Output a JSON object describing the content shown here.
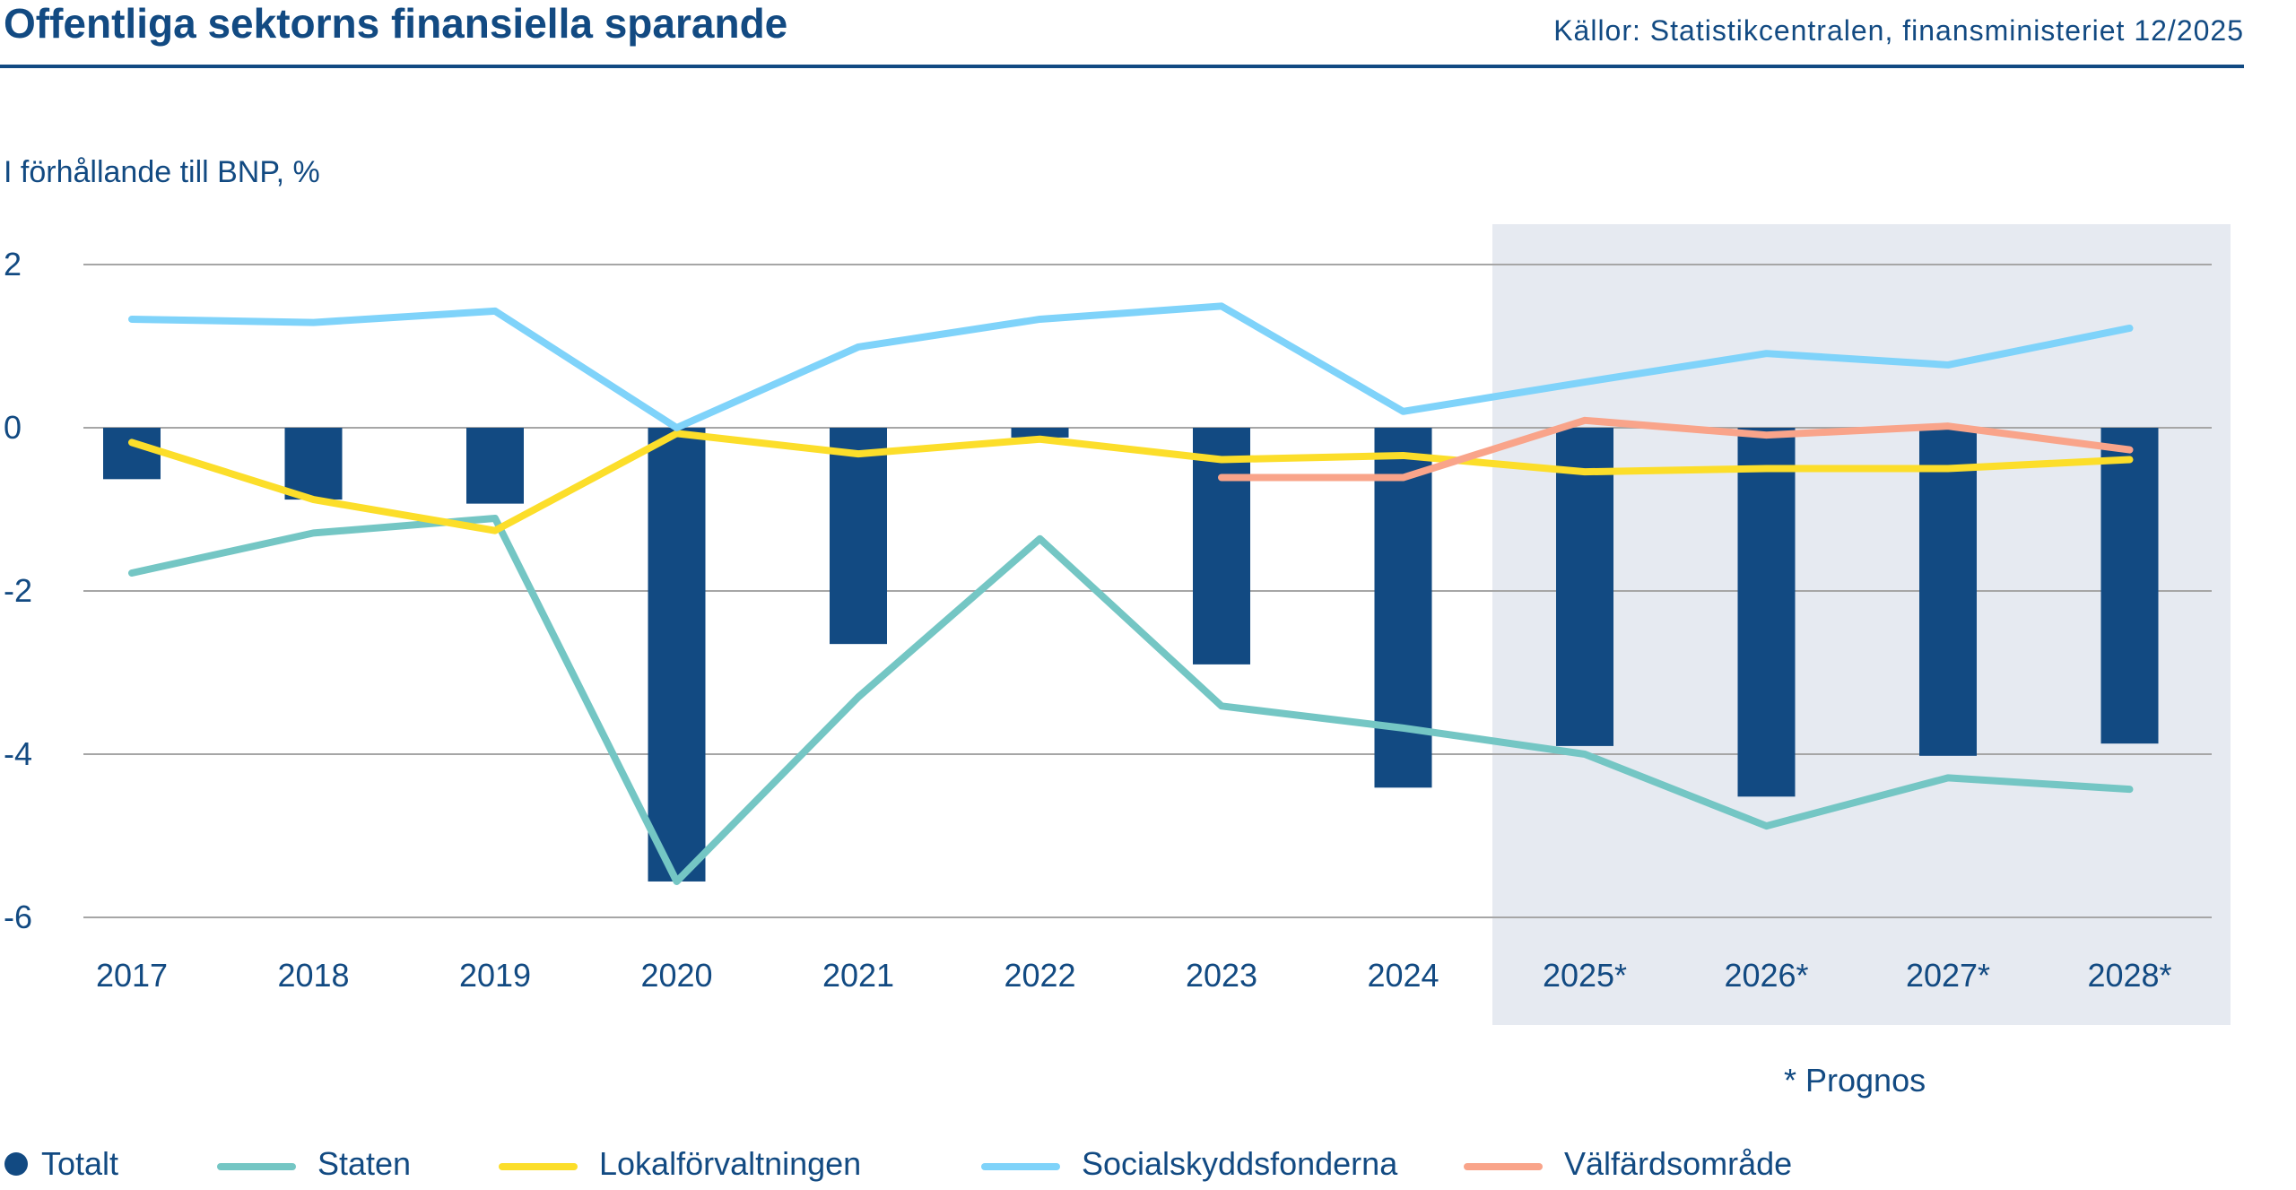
{
  "header": {
    "title": "Offentliga sektorns finansiella sparande",
    "source": "Källor: Statistikcentralen, finansministeriet 12/2025"
  },
  "chart_data": {
    "type": "bar+line",
    "ylabel": "I förhållande till BNP, %",
    "ylim": [
      -6,
      2
    ],
    "yticks": [
      2,
      0,
      -2,
      -4,
      -6
    ],
    "grid": true,
    "categories": [
      "2017",
      "2018",
      "2019",
      "2020",
      "2021",
      "2022",
      "2023",
      "2024",
      "2025*",
      "2026*",
      "2027*",
      "2028*"
    ],
    "forecast_note": "* Prognos",
    "forecast_from": "2025*",
    "legend_position": "bottom",
    "series": [
      {
        "name": "Totalt",
        "kind": "bar",
        "color": "#124a82",
        "values": [
          -0.63,
          -0.88,
          -0.93,
          -5.56,
          -2.65,
          -0.12,
          -2.9,
          -4.41,
          -3.9,
          -4.52,
          -4.02,
          -3.87
        ]
      },
      {
        "name": "Staten",
        "kind": "line",
        "color": "#74c6c4",
        "values": [
          -1.78,
          -1.29,
          -1.11,
          -5.56,
          -3.3,
          -1.36,
          -3.41,
          -3.68,
          -4.0,
          -4.88,
          -4.29,
          -4.43
        ]
      },
      {
        "name": "Lokalförvaltningen",
        "kind": "line",
        "color": "#fcde2a",
        "values": [
          -0.18,
          -0.88,
          -1.26,
          -0.07,
          -0.32,
          -0.14,
          -0.39,
          -0.34,
          -0.54,
          -0.5,
          -0.5,
          -0.39
        ]
      },
      {
        "name": "Socialskyddsfonderna",
        "kind": "line",
        "color": "#7fd3fa",
        "values": [
          1.33,
          1.29,
          1.43,
          0.0,
          0.99,
          1.33,
          1.49,
          0.2,
          0.56,
          0.91,
          0.77,
          1.22
        ]
      },
      {
        "name": "Välfärdsområde",
        "kind": "line",
        "color": "#f9a48a",
        "values": [
          null,
          null,
          null,
          null,
          null,
          null,
          -0.61,
          -0.61,
          0.09,
          -0.09,
          0.02,
          -0.27
        ]
      }
    ]
  }
}
